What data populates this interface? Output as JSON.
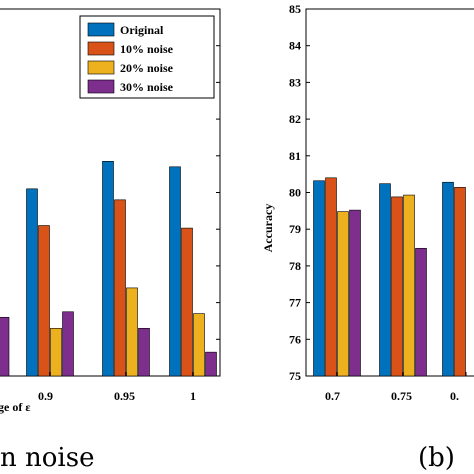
{
  "chart_data": [
    {
      "type": "bar",
      "xlabel": "ge of ε",
      "ylabel": "",
      "categories": [
        "0.9",
        "0.95",
        "1"
      ],
      "series": [
        {
          "name": "Original",
          "values": [
            80.1,
            80.85,
            80.7
          ]
        },
        {
          "name": "10% noise",
          "values": [
            79.1,
            79.8,
            79.03
          ]
        },
        {
          "name": "20% noise",
          "values": [
            76.3,
            77.4,
            76.7
          ]
        },
        {
          "name": "30% noise",
          "values": [
            76.75,
            76.3,
            75.65
          ]
        }
      ],
      "partial_left": {
        "series": "30% noise",
        "value": 76.6
      },
      "ylim": [
        75,
        85
      ],
      "grid": false,
      "legend": "top-right",
      "caption": "n noise",
      "colors": [
        "#0072BD",
        "#D95319",
        "#EDB120",
        "#7E2F8E"
      ]
    },
    {
      "type": "bar",
      "xlabel": "",
      "ylabel": "Accuracy",
      "categories": [
        "0.7",
        "0.75",
        "0."
      ],
      "yticks": [
        "75",
        "76",
        "77",
        "78",
        "79",
        "80",
        "81",
        "82",
        "83",
        "84",
        "85"
      ],
      "series": [
        {
          "name": "Original",
          "values": [
            80.32,
            80.24,
            80.28
          ]
        },
        {
          "name": "10% noise",
          "values": [
            80.4,
            79.88,
            80.14
          ]
        },
        {
          "name": "20% noise",
          "values": [
            79.48,
            79.93,
            null
          ]
        },
        {
          "name": "30% noise",
          "values": [
            79.52,
            78.48,
            null
          ]
        }
      ],
      "ylim": [
        75,
        85
      ],
      "grid": false,
      "caption": "(b)",
      "colors": [
        "#0072BD",
        "#D95319",
        "#EDB120",
        "#7E2F8E"
      ]
    }
  ]
}
